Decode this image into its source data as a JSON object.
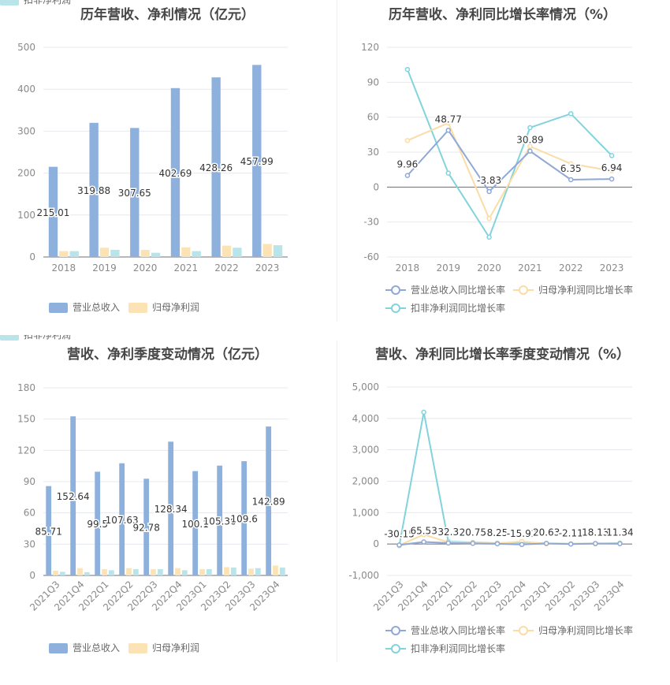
{
  "colors": {
    "revenue": "#8eb0dc",
    "netprofit": "#fce3b6",
    "deducted": "#b8e4ea",
    "line_revenue": "#8fa8d6",
    "line_netprofit": "#fbdca6",
    "line_deducted": "#82d3dc"
  },
  "charts": [
    {
      "type": "bar",
      "title": "历年营收、净利情况（亿元）",
      "categories": [
        "2018",
        "2019",
        "2020",
        "2021",
        "2022",
        "2023"
      ],
      "y_ticks": [
        "0",
        "100",
        "200",
        "300",
        "400",
        "500"
      ],
      "ylim": [
        0,
        500
      ],
      "series": [
        {
          "name": "营业总收入",
          "values": [
            215.01,
            319.88,
            307.65,
            402.69,
            428.26,
            457.99
          ],
          "labels": [
            "215.01",
            "319.88",
            "307.65",
            "402.69",
            "428.26",
            "457.99"
          ]
        },
        {
          "name": "归母净利润",
          "values": [
            14,
            22,
            17,
            23,
            27,
            31
          ]
        },
        {
          "name": "扣非净利润",
          "values": [
            14,
            17,
            10,
            14,
            22,
            28
          ]
        }
      ]
    },
    {
      "type": "line",
      "title": "历年营收、净利同比增长率情况（%）",
      "categories": [
        "2018",
        "2019",
        "2020",
        "2021",
        "2022",
        "2023"
      ],
      "y_ticks": [
        "120",
        "90",
        "60",
        "30",
        "0",
        "-30",
        "-60"
      ],
      "ylim": [
        -60,
        120
      ],
      "series": [
        {
          "name": "营业总收入同比增长率",
          "values": [
            9.96,
            48.77,
            -3.83,
            30.89,
            6.35,
            6.94
          ],
          "labels": [
            "9.96",
            "48.77",
            "-3.83",
            "30.89",
            "6.35",
            "6.94"
          ]
        },
        {
          "name": "归母净利润同比增长率",
          "values": [
            40,
            55,
            -27,
            35,
            20,
            14
          ]
        },
        {
          "name": "扣非净利润同比增长率",
          "values": [
            101,
            12,
            -43,
            51,
            63,
            27
          ]
        }
      ]
    },
    {
      "type": "bar",
      "title": "营收、净利季度变动情况（亿元）",
      "categories": [
        "2021Q3",
        "2021Q4",
        "2022Q1",
        "2022Q2",
        "2022Q3",
        "2022Q4",
        "2023Q1",
        "2023Q2",
        "2023Q3",
        "2023Q4"
      ],
      "y_ticks": [
        "0",
        "30",
        "60",
        "90",
        "120",
        "150",
        "180"
      ],
      "ylim": [
        0,
        180
      ],
      "series": [
        {
          "name": "营业总收入",
          "values": [
            85.71,
            152.64,
            99.5,
            107.63,
            92.78,
            128.34,
            100.1,
            105.36,
            109.6,
            142.89
          ],
          "labels": [
            "85.71",
            "152.64",
            "99.5",
            "107.63",
            "92.78",
            "128.34",
            "100.1",
            "105.36",
            "109.6",
            "142.89"
          ]
        },
        {
          "name": "归母净利润",
          "values": [
            4.5,
            7,
            6,
            7,
            6,
            7,
            6,
            8,
            6.5,
            9.5
          ]
        },
        {
          "name": "扣非净利润",
          "values": [
            3.5,
            3,
            5,
            6,
            6,
            5,
            6,
            7.5,
            7,
            7.5
          ]
        }
      ]
    },
    {
      "type": "line",
      "title": "营收、净利同比增长率季度变动情况（%）",
      "categories": [
        "2021Q3",
        "2021Q4",
        "2022Q1",
        "2022Q2",
        "2022Q3",
        "2022Q4",
        "2023Q1",
        "2023Q2",
        "2023Q3",
        "2023Q4"
      ],
      "y_ticks": [
        "5,000",
        "4,000",
        "3,000",
        "2,000",
        "1,000",
        "0",
        "-1,000"
      ],
      "ylim": [
        -1000,
        5000
      ],
      "series": [
        {
          "name": "营业总收入同比增长率",
          "values": [
            -30.15,
            65.53,
            32.3,
            20.75,
            8.25,
            -15.92,
            20.63,
            -2.11,
            18.13,
            11.34
          ],
          "labels": [
            "-30.15",
            "65.53",
            "32.3",
            "20.75",
            "8.25",
            "-15.92",
            "20.63",
            "-2.11",
            "18.13",
            "11.34"
          ]
        },
        {
          "name": "归母净利润同比增长率",
          "values": [
            -40,
            300,
            60,
            40,
            20,
            80,
            10,
            10,
            10,
            20
          ]
        },
        {
          "name": "扣非净利润同比增长率",
          "values": [
            -50,
            4200,
            80,
            50,
            30,
            50,
            20,
            10,
            10,
            30
          ]
        }
      ]
    }
  ]
}
